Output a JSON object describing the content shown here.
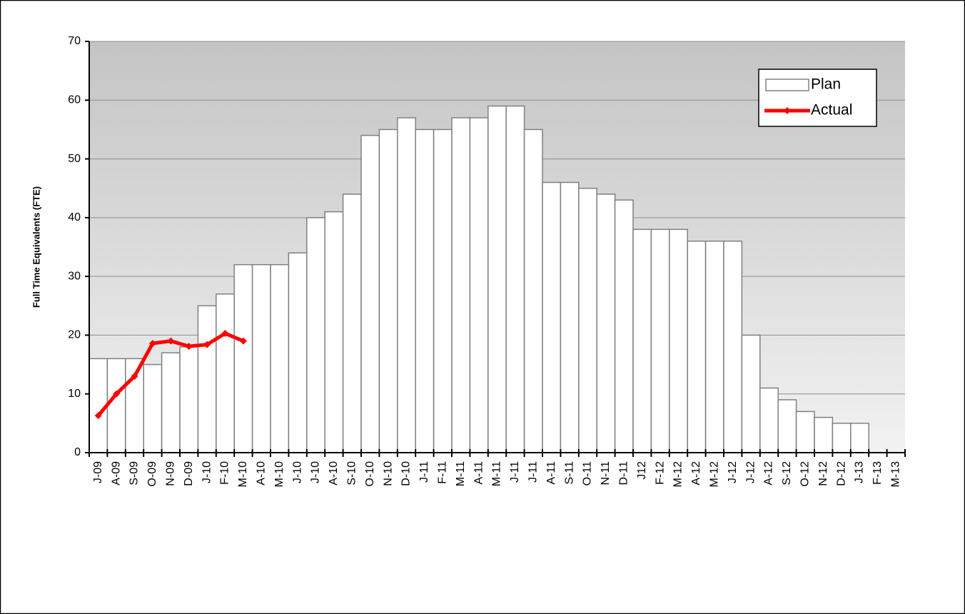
{
  "chart_data": {
    "type": "bar-line",
    "y_label": "Full Time Equivalents (FTE)",
    "categories": [
      "J-09",
      "A-09",
      "S-09",
      "O-09",
      "N-09",
      "D-09",
      "J-10",
      "F-10",
      "M-10",
      "A-10",
      "M-10",
      "J-10",
      "J-10",
      "A-10",
      "S-10",
      "O-10",
      "N-10",
      "D-10",
      "J-11",
      "F-11",
      "M-11",
      "A-11",
      "M-11",
      "J-11",
      "J-11",
      "A-11",
      "S-11",
      "O-11",
      "N-11",
      "D-11",
      "J12",
      "F-12",
      "M-12",
      "A-12",
      "M-12",
      "J-12",
      "J-12",
      "A-12",
      "S-12",
      "O-12",
      "N-12",
      "D-12",
      "J-13",
      "F-13",
      "M-13"
    ],
    "series": [
      {
        "name": "Plan",
        "type": "bar",
        "color": "#ffffff",
        "stroke": "#808080",
        "values": [
          16,
          16,
          16,
          15,
          17,
          18,
          25,
          27,
          32,
          32,
          32,
          34,
          40,
          41,
          44,
          54,
          55,
          57,
          55,
          55,
          57,
          57,
          59,
          59,
          55,
          46,
          46,
          45,
          44,
          43,
          38,
          38,
          38,
          36,
          36,
          36,
          20,
          11,
          9,
          7,
          6,
          5,
          5,
          null,
          null
        ]
      },
      {
        "name": "Actual",
        "type": "line",
        "color": "#ff0000",
        "values": [
          6.3,
          10,
          13,
          18.6,
          19,
          18.1,
          18.4,
          20.3,
          19,
          null,
          null,
          null,
          null,
          null,
          null,
          null,
          null,
          null,
          null,
          null,
          null,
          null,
          null,
          null,
          null,
          null,
          null,
          null,
          null,
          null,
          null,
          null,
          null,
          null,
          null,
          null,
          null,
          null,
          null,
          null,
          null,
          null,
          null,
          null,
          null
        ]
      }
    ],
    "ylim": [
      0,
      70
    ],
    "yticks": [
      0,
      10,
      20,
      30,
      40,
      50,
      60,
      70
    ],
    "grid": true,
    "legend": "top-right"
  }
}
